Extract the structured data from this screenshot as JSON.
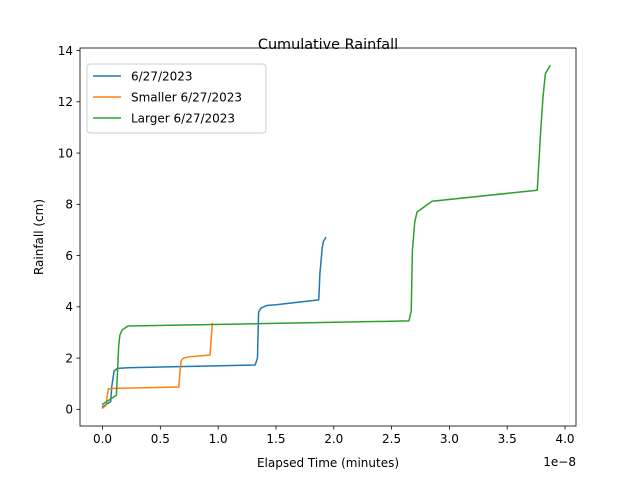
{
  "chart_data": {
    "type": "line",
    "title": "Cumulative Rainfall",
    "xlabel": "Elapsed Time (minutes)",
    "ylabel": "Rainfall (cm)",
    "x_offset_label": "1e−8",
    "xlim": [
      -0.195,
      4.095
    ],
    "ylim": [
      -0.65,
      14.1
    ],
    "x_ticks": [
      0.0,
      0.5,
      1.0,
      1.5,
      2.0,
      2.5,
      3.0,
      3.5,
      4.0
    ],
    "x_tick_labels": [
      "0.0",
      "0.5",
      "1.0",
      "1.5",
      "2.0",
      "2.5",
      "3.0",
      "3.5",
      "4.0"
    ],
    "y_ticks": [
      0,
      2,
      4,
      6,
      8,
      10,
      12,
      14
    ],
    "y_tick_labels": [
      "0",
      "2",
      "4",
      "6",
      "8",
      "10",
      "12",
      "14"
    ],
    "grid": false,
    "legend_position": "top-left",
    "series": [
      {
        "name": "6/27/2023",
        "color": "#1f77b4",
        "x": [
          0.0,
          0.07,
          0.08,
          0.1,
          0.13,
          0.2,
          1.32,
          1.34,
          1.35,
          1.37,
          1.42,
          1.5,
          1.87,
          1.88,
          1.9,
          1.91,
          1.93
        ],
        "y": [
          0.1,
          0.3,
          0.9,
          1.5,
          1.6,
          1.62,
          1.73,
          2.0,
          3.8,
          3.95,
          4.05,
          4.08,
          4.27,
          5.3,
          6.3,
          6.55,
          6.7
        ]
      },
      {
        "name": "Smaller 6/27/2023",
        "color": "#ff7f0e",
        "x": [
          0.0,
          0.03,
          0.04,
          0.05,
          0.1,
          0.66,
          0.67,
          0.68,
          0.7,
          0.75,
          0.93,
          0.94,
          0.95
        ],
        "y": [
          0.05,
          0.15,
          0.5,
          0.8,
          0.82,
          0.87,
          1.5,
          1.9,
          2.0,
          2.05,
          2.12,
          2.8,
          3.35
        ]
      },
      {
        "name": "Larger 6/27/2023",
        "color": "#2ca02c",
        "x": [
          0.0,
          0.12,
          0.14,
          0.15,
          0.17,
          0.22,
          2.65,
          2.67,
          2.68,
          2.7,
          2.72,
          2.85,
          3.76,
          3.79,
          3.81,
          3.83,
          3.87
        ],
        "y": [
          0.2,
          0.55,
          2.5,
          2.9,
          3.1,
          3.25,
          3.45,
          3.85,
          6.2,
          7.3,
          7.7,
          8.12,
          8.55,
          10.9,
          12.2,
          13.1,
          13.4
        ]
      }
    ]
  }
}
